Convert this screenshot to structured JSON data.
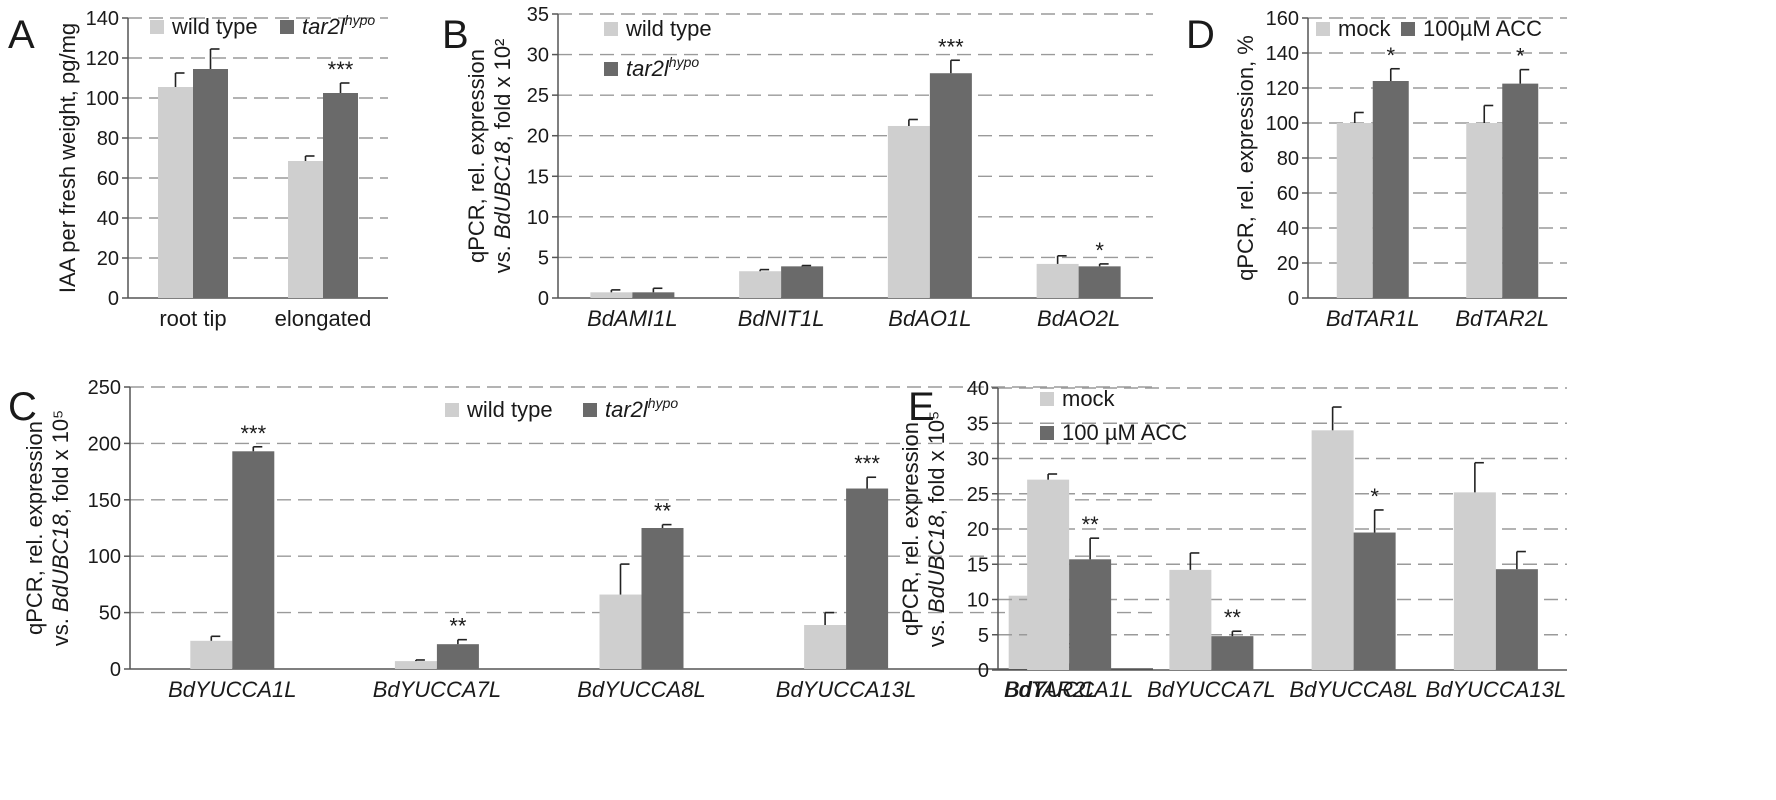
{
  "colors": {
    "light": "#cfcfcf",
    "dark": "#6a6a6a",
    "grid": "#9a9a9a",
    "axis": "#555555"
  },
  "chart_data": [
    {
      "id": "A",
      "type": "bar",
      "panel_label": "A",
      "ylabel": "IAA per fresh weight, pg/mg",
      "ylim": [
        0,
        140
      ],
      "yticks": [
        0,
        20,
        40,
        60,
        80,
        100,
        120,
        140
      ],
      "categories": [
        "root tip",
        "elongated"
      ],
      "categories_italic": false,
      "legend": {
        "placement": "top-left",
        "entries": [
          {
            "text": "wild type",
            "sup": "",
            "italic": false
          },
          {
            "text": "tar2l",
            "sup": "hypo",
            "italic": true
          }
        ]
      },
      "series": [
        {
          "name": "wild type",
          "values": [
            105.5,
            68.5
          ],
          "errors": [
            7,
            2.5
          ]
        },
        {
          "name": "tar2l hypo",
          "values": [
            114.5,
            102.5
          ],
          "errors": [
            10,
            5
          ]
        }
      ],
      "annotations": [
        {
          "category": 1,
          "series": 1,
          "text": "***"
        }
      ]
    },
    {
      "id": "B",
      "type": "bar",
      "panel_label": "B",
      "ylabel_lines": [
        "qPCR, rel. expression",
        "vs. BdUBC18, fold x 10²"
      ],
      "ylim": [
        0,
        35
      ],
      "yticks": [
        0,
        5,
        10,
        15,
        20,
        25,
        30,
        35
      ],
      "categories": [
        "BdAMI1L",
        "BdNIT1L",
        "BdAO1L",
        "BdAO2L"
      ],
      "categories_italic": true,
      "legend": {
        "placement": "top-left",
        "entries": [
          {
            "text": "wild type",
            "sup": "",
            "italic": false
          },
          {
            "text": "tar2l",
            "sup": "hypo",
            "italic": true
          }
        ]
      },
      "series": [
        {
          "name": "wild type",
          "values": [
            0.7,
            3.3,
            21.2,
            4.2
          ],
          "errors": [
            0.3,
            0.2,
            0.8,
            1.0
          ]
        },
        {
          "name": "tar2l hypo",
          "values": [
            0.7,
            3.9,
            27.7,
            3.9
          ],
          "errors": [
            0.5,
            0.1,
            1.6,
            0.3
          ]
        }
      ],
      "annotations": [
        {
          "category": 2,
          "series": 1,
          "text": "***"
        },
        {
          "category": 3,
          "series": 1,
          "text": "*"
        }
      ]
    },
    {
      "id": "C",
      "type": "bar",
      "panel_label": "C",
      "ylabel_lines": [
        "qPCR, rel. expression",
        "vs. BdUBC18, fold x 10⁵"
      ],
      "ylim": [
        0,
        250
      ],
      "yticks": [
        0,
        50,
        100,
        150,
        200,
        250
      ],
      "categories": [
        "BdYUCCA1L",
        "BdYUCCA7L",
        "BdYUCCA8L",
        "BdYUCCA13L",
        "BdTAR2L"
      ],
      "categories_italic": true,
      "legend": {
        "placement": "top-center",
        "entries": [
          {
            "text": "wild type",
            "sup": "",
            "italic": false
          },
          {
            "text": "tar2l",
            "sup": "hypo",
            "italic": true
          }
        ]
      },
      "series": [
        {
          "name": "wild type",
          "values": [
            25,
            7,
            66,
            39,
            65
          ],
          "errors": [
            4,
            1,
            27,
            11,
            14
          ]
        },
        {
          "name": "tar2l hypo",
          "values": [
            193,
            22,
            125,
            160,
            5
          ],
          "errors": [
            4,
            4,
            3,
            10,
            1
          ]
        }
      ],
      "annotations": [
        {
          "category": 0,
          "series": 1,
          "text": "***"
        },
        {
          "category": 1,
          "series": 1,
          "text": "**"
        },
        {
          "category": 2,
          "series": 1,
          "text": "**"
        },
        {
          "category": 3,
          "series": 1,
          "text": "***"
        },
        {
          "category": 4,
          "series": 1,
          "text": "***"
        }
      ]
    },
    {
      "id": "D",
      "type": "bar",
      "panel_label": "D",
      "ylabel": "qPCR, rel. expression, %",
      "ylim": [
        0,
        160
      ],
      "yticks": [
        0,
        20,
        40,
        60,
        80,
        100,
        120,
        140,
        160
      ],
      "categories": [
        "BdTAR1L",
        "BdTAR2L"
      ],
      "categories_italic": true,
      "legend": {
        "placement": "top",
        "entries": [
          {
            "text": "mock",
            "sup": "",
            "italic": false
          },
          {
            "text": "100µM ACC",
            "sup": "",
            "italic": false
          }
        ]
      },
      "series": [
        {
          "name": "mock",
          "values": [
            100,
            100
          ],
          "errors": [
            6,
            10
          ]
        },
        {
          "name": "100µM ACC",
          "values": [
            124,
            122.5
          ],
          "errors": [
            7,
            8
          ]
        }
      ],
      "annotations": [
        {
          "category": 0,
          "series": 1,
          "text": "*"
        },
        {
          "category": 1,
          "series": 1,
          "text": "*"
        }
      ]
    },
    {
      "id": "E",
      "type": "bar",
      "panel_label": "E",
      "ylabel_lines": [
        "qPCR, rel. expression",
        "vs. BdUBC18, fold x 10⁵"
      ],
      "ylim": [
        0,
        40
      ],
      "yticks": [
        0,
        5,
        10,
        15,
        20,
        25,
        30,
        35,
        40
      ],
      "categories": [
        "BdYUCCA1L",
        "BdYUCCA7L",
        "BdYUCCA8L",
        "BdYUCCA13L"
      ],
      "categories_italic": true,
      "legend": {
        "placement": "top-left",
        "entries": [
          {
            "text": "mock",
            "sup": "",
            "italic": false
          },
          {
            "text": "100 µM ACC",
            "sup": "",
            "italic": false
          }
        ]
      },
      "series": [
        {
          "name": "mock",
          "values": [
            27,
            14.2,
            34,
            25.2
          ],
          "errors": [
            0.8,
            2.4,
            3.3,
            4.2
          ]
        },
        {
          "name": "100 µM ACC",
          "values": [
            15.7,
            4.8,
            19.5,
            14.3
          ],
          "errors": [
            3,
            0.7,
            3.2,
            2.5
          ]
        }
      ],
      "annotations": [
        {
          "category": 0,
          "series": 1,
          "text": "**"
        },
        {
          "category": 1,
          "series": 1,
          "text": "**"
        },
        {
          "category": 2,
          "series": 1,
          "text": "*"
        }
      ]
    }
  ]
}
